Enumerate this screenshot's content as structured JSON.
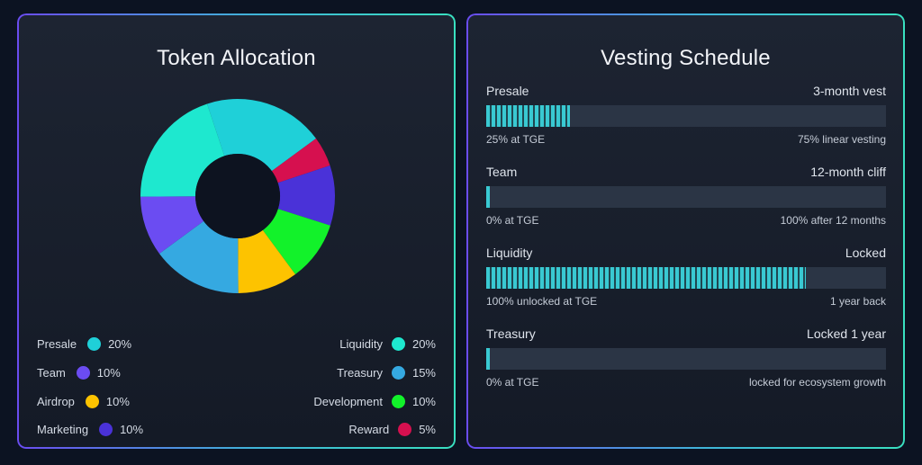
{
  "allocation": {
    "title": "Token Allocation",
    "items": [
      {
        "name": "Presale",
        "percent": "20%",
        "value": 20,
        "color": "#1fd0d8"
      },
      {
        "name": "Liquidity",
        "percent": "20%",
        "value": 20,
        "color": "#1ee8cf"
      },
      {
        "name": "Team",
        "percent": "10%",
        "value": 10,
        "color": "#6b4cf2"
      },
      {
        "name": "Treasury",
        "percent": "15%",
        "value": 15,
        "color": "#35a9e1"
      },
      {
        "name": "Airdrop",
        "percent": "10%",
        "value": 10,
        "color": "#fdc300"
      },
      {
        "name": "Development",
        "percent": "10%",
        "value": 10,
        "color": "#12f22a"
      },
      {
        "name": "Marketing",
        "percent": "10%",
        "value": 10,
        "color": "#4a32d8"
      },
      {
        "name": "Reward",
        "percent": "5%",
        "value": 5,
        "color": "#d6104f"
      }
    ],
    "donut_order": [
      "Presale",
      "Reward",
      "Marketing",
      "Development",
      "Airdrop",
      "Treasury",
      "Team",
      "Liquidity"
    ]
  },
  "vesting": {
    "title": "Vesting Schedule",
    "rows": [
      {
        "name": "Presale",
        "term": "3-month vest",
        "left_note": "25% at TGE",
        "right_note": "75% linear vesting",
        "progress": 0.21,
        "style": "striped"
      },
      {
        "name": "Team",
        "term": "12-month cliff",
        "left_note": "0% at TGE",
        "right_note": "100% after 12 months",
        "progress": 0.01,
        "style": "thin"
      },
      {
        "name": "Liquidity",
        "term": "Locked",
        "left_note": "100% unlocked at TGE",
        "right_note": "1 year back",
        "progress": 0.8,
        "style": "striped"
      },
      {
        "name": "Treasury",
        "term": "Locked 1 year",
        "left_note": "0% at TGE",
        "right_note": "locked for ecosystem growth",
        "progress": 0.01,
        "style": "thin"
      }
    ]
  }
}
